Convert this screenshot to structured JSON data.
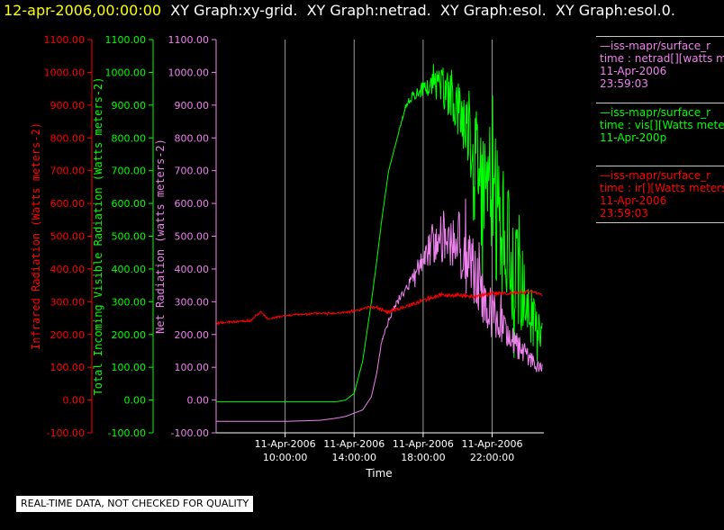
{
  "header": {
    "date": "12-apr-2006,00:00:00",
    "items": "  XY Graph:xy-grid.  XY Graph:netrad.  XY Graph:esol.  XY Graph:esol.0."
  },
  "notice": "REAL-TIME DATA, NOT CHECKED FOR QUALITY",
  "legend": [
    {
      "color": "#ee82ee",
      "lines": [
        "—iss-mapr/surface_r",
        "time : netrad[][watts me",
        "11-Apr-2006",
        "23:59:03"
      ]
    },
    {
      "color": "#00ff00",
      "lines": [
        "—iss-mapr/surface_r",
        "time : vis[][Watts meter",
        "11-Apr-200p"
      ]
    },
    {
      "color": "#ff0000",
      "lines": [
        "—iss-mapr/surface_r",
        "time : ir[][Watts meters",
        "11-Apr-2006",
        "23:59:03"
      ]
    }
  ],
  "chart_data": {
    "type": "line",
    "xlabel": "Time",
    "x_range": [
      6.0,
      25.0
    ],
    "x_ticks": [
      {
        "value": 10,
        "label": [
          "11-Apr-2006",
          "10:00:00"
        ]
      },
      {
        "value": 14,
        "label": [
          "11-Apr-2006",
          "14:00:00"
        ]
      },
      {
        "value": 18,
        "label": [
          "11-Apr-2006",
          "18:00:00"
        ]
      },
      {
        "value": 22,
        "label": [
          "11-Apr-2006",
          "22:00:00"
        ]
      }
    ],
    "axes": [
      {
        "id": "ir",
        "color": "#ff0000",
        "label": "Infrared Radiation (Watts meters-2)",
        "ylim": [
          -100,
          1100
        ],
        "ticks": [
          "-100.00",
          "0.00",
          "100.00",
          "200.00",
          "300.00",
          "400.00",
          "500.00",
          "600.00",
          "700.00",
          "800.00",
          "900.00",
          "1000.00",
          "1100.00"
        ]
      },
      {
        "id": "vis",
        "color": "#00ff00",
        "label": "Total Incoming Visible Radiation (Watts meters-2)",
        "ylim": [
          -100,
          1100
        ],
        "ticks": [
          "-100.00",
          "0.00",
          "100.00",
          "200.00",
          "300.00",
          "400.00",
          "500.00",
          "600.00",
          "700.00",
          "800.00",
          "900.00",
          "1000.00",
          "1100.00"
        ]
      },
      {
        "id": "net",
        "color": "#ee82ee",
        "label": "Net Radiation (watts meters-2)",
        "ylim": [
          -100,
          1100
        ],
        "ticks": [
          "-100.00",
          "0.00",
          "100.00",
          "200.00",
          "300.00",
          "400.00",
          "500.00",
          "600.00",
          "700.00",
          "800.00",
          "900.00",
          "1000.00",
          "1100.00"
        ]
      }
    ],
    "grid": {
      "vertical": true,
      "horizontal": false
    },
    "series": [
      {
        "axis": "vis",
        "color": "#00ff00",
        "noise": [
          0,
          0,
          0,
          0,
          0,
          0,
          0,
          0,
          0,
          0,
          0,
          0,
          0,
          0,
          0,
          0,
          10,
          15,
          25,
          40,
          60,
          80,
          100,
          120,
          150,
          200,
          230,
          230,
          200,
          180,
          160,
          140,
          130,
          110,
          90,
          70,
          50
        ],
        "x": [
          6.0,
          7,
          8,
          9,
          10,
          11,
          12,
          13,
          13.5,
          14,
          14.5,
          15,
          15.3,
          15.6,
          16,
          16.5,
          17,
          17.5,
          18,
          18.5,
          19,
          19.5,
          20,
          20.5,
          21,
          21.5,
          22,
          22.3,
          22.6,
          23,
          23.3,
          23.6,
          23.8,
          24,
          24.3,
          24.6,
          24.9
        ],
        "y": [
          -5,
          -5,
          -5,
          -5,
          -5,
          -5,
          -5,
          -5,
          0,
          20,
          120,
          300,
          420,
          550,
          700,
          800,
          900,
          930,
          950,
          960,
          955,
          940,
          900,
          850,
          770,
          700,
          600,
          560,
          520,
          450,
          400,
          360,
          330,
          290,
          250,
          220,
          210
        ]
      },
      {
        "axis": "net",
        "color": "#ee82ee",
        "noise": [
          0,
          0,
          0,
          0,
          0,
          0,
          0,
          0,
          0,
          0,
          4,
          8,
          12,
          18,
          25,
          40,
          60,
          80,
          100,
          110,
          120,
          100,
          80,
          70,
          60,
          50,
          40,
          30,
          25,
          20
        ],
        "x": [
          6.0,
          8,
          10,
          12,
          13,
          13.5,
          14,
          14.5,
          15,
          15.3,
          15.6,
          16,
          16.5,
          17,
          17.5,
          18,
          18.5,
          19,
          19.5,
          20,
          20.5,
          21,
          21.5,
          22,
          22.5,
          23,
          23.5,
          24,
          24.5,
          24.9
        ],
        "y": [
          -65,
          -65,
          -65,
          -62,
          -55,
          -50,
          -40,
          -30,
          10,
          80,
          180,
          240,
          300,
          340,
          380,
          430,
          480,
          500,
          495,
          470,
          430,
          380,
          320,
          270,
          230,
          190,
          160,
          140,
          110,
          95
        ]
      },
      {
        "axis": "ir",
        "color": "#ff0000",
        "noise": [
          3,
          3,
          3,
          3,
          3,
          3,
          3,
          4,
          4,
          5,
          5,
          6,
          6,
          6,
          6,
          6,
          5,
          5,
          4,
          3
        ],
        "x": [
          6.0,
          8,
          8.6,
          9,
          10,
          12,
          13,
          14,
          15,
          16,
          17,
          18,
          19,
          20,
          21,
          22,
          23,
          24,
          24.5,
          24.9
        ],
        "y": [
          235,
          242,
          270,
          247,
          258,
          265,
          265,
          270,
          285,
          270,
          285,
          305,
          320,
          320,
          315,
          325,
          325,
          330,
          330,
          320
        ]
      }
    ]
  }
}
